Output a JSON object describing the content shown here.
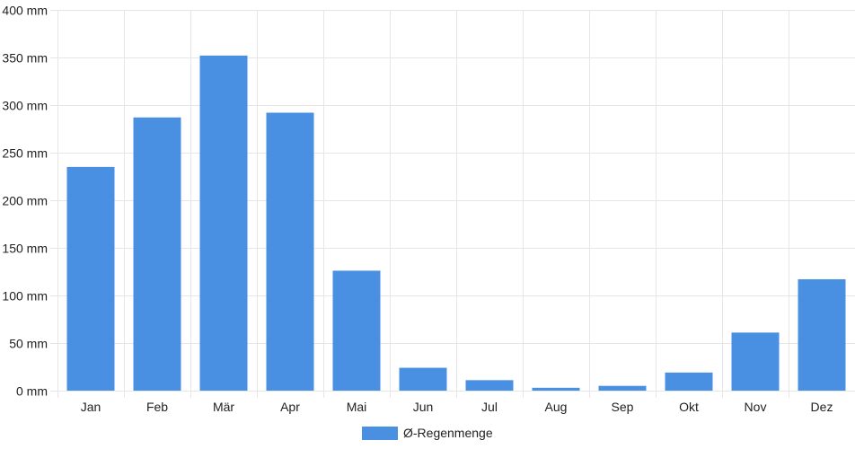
{
  "chart_data": {
    "type": "bar",
    "categories": [
      "Jan",
      "Feb",
      "Mär",
      "Apr",
      "Mai",
      "Jun",
      "Jul",
      "Aug",
      "Sep",
      "Okt",
      "Nov",
      "Dez"
    ],
    "series": [
      {
        "name": "Ø-Regenmenge",
        "values": [
          235,
          287,
          352,
          292,
          126,
          24,
          11,
          3,
          5,
          19,
          61,
          117
        ],
        "color": "#4a90e2"
      }
    ],
    "ylim": [
      0,
      400
    ],
    "yticks": [
      0,
      50,
      100,
      150,
      200,
      250,
      300,
      350,
      400
    ],
    "ytick_labels": [
      "0 mm",
      "50 mm",
      "100 mm",
      "150 mm",
      "200 mm",
      "250 mm",
      "300 mm",
      "350 mm",
      "400 mm"
    ],
    "title": "",
    "xlabel": "",
    "ylabel": "",
    "grid": true,
    "legend_position": "bottom-center",
    "grid_color": "#e6e6e6"
  }
}
